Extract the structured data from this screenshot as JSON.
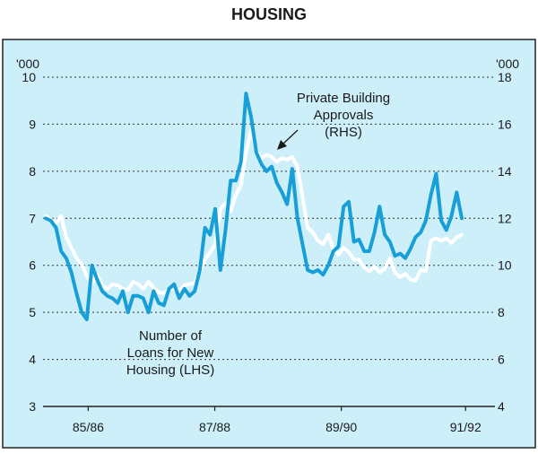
{
  "chart_data": {
    "type": "line",
    "title": "HOUSING",
    "left_axis": {
      "unit": "'000",
      "ylim": [
        3,
        10
      ],
      "ticks": [
        3,
        4,
        5,
        6,
        7,
        8,
        9,
        10
      ]
    },
    "right_axis": {
      "unit": "'000",
      "ylim": [
        4,
        18
      ],
      "ticks": [
        4,
        6,
        8,
        10,
        12,
        14,
        16,
        18
      ]
    },
    "x_tick_labels": [
      {
        "label": "85/86",
        "t": 0.1
      },
      {
        "label": "87/88",
        "t": 0.38
      },
      {
        "label": "89/90",
        "t": 0.66
      },
      {
        "label": "91/92",
        "t": 0.935
      }
    ],
    "series": [
      {
        "name": "Number of Loans for New Housing (LHS)",
        "axis": "left",
        "color": "#189fd8",
        "values": [
          7.0,
          6.95,
          6.8,
          6.3,
          6.15,
          5.85,
          5.4,
          5.0,
          4.85,
          6.0,
          5.7,
          5.45,
          5.35,
          5.3,
          5.2,
          5.45,
          5.0,
          5.35,
          5.35,
          5.3,
          5.0,
          5.45,
          5.2,
          5.15,
          5.5,
          5.6,
          5.3,
          5.5,
          5.35,
          5.45,
          5.9,
          6.8,
          6.65,
          7.2,
          5.9,
          6.75,
          7.8,
          7.8,
          8.2,
          9.65,
          9.15,
          8.4,
          8.15,
          8.0,
          8.1,
          7.75,
          7.55,
          7.3,
          8.05,
          7.0,
          6.45,
          5.9,
          5.85,
          5.9,
          5.8,
          6.0,
          6.3,
          6.4,
          7.25,
          7.35,
          6.5,
          6.55,
          6.3,
          6.3,
          6.7,
          7.25,
          6.65,
          6.5,
          6.2,
          6.25,
          6.15,
          6.35,
          6.6,
          6.7,
          6.95,
          7.5,
          7.95,
          6.95,
          6.75,
          7.05,
          7.55,
          7.0
        ]
      },
      {
        "name": "Private Building Approvals (RHS)",
        "axis": "right",
        "color": "#ffffff",
        "values": [
          12.1,
          11.95,
          11.8,
          12.1,
          11.2,
          10.75,
          10.3,
          10.05,
          9.55,
          9.25,
          9.6,
          9.15,
          9.0,
          9.2,
          9.15,
          9.0,
          8.95,
          9.3,
          9.2,
          9.0,
          9.3,
          9.05,
          8.85,
          8.8,
          9.0,
          9.0,
          8.9,
          9.15,
          9.2,
          9.25,
          9.7,
          10.25,
          10.55,
          10.9,
          12.4,
          12.65,
          12.3,
          13.0,
          13.4,
          14.8,
          15.8,
          14.85,
          14.55,
          14.7,
          14.6,
          14.4,
          14.55,
          14.5,
          14.6,
          14.2,
          12.9,
          11.6,
          11.4,
          11.05,
          10.9,
          11.3,
          10.7,
          10.45,
          10.75,
          10.55,
          10.25,
          10.25,
          9.9,
          9.75,
          9.95,
          9.7,
          9.85,
          10.3,
          9.7,
          9.5,
          9.65,
          9.4,
          9.35,
          9.8,
          9.75,
          11.05,
          11.15,
          11.05,
          11.15,
          10.95,
          11.2,
          11.3
        ]
      }
    ],
    "annotations": {
      "rhs_label": [
        "Private Building",
        "Approvals",
        "(RHS)"
      ],
      "lhs_label": [
        "Number of",
        "Loans for New",
        "Housing (LHS)"
      ]
    }
  }
}
